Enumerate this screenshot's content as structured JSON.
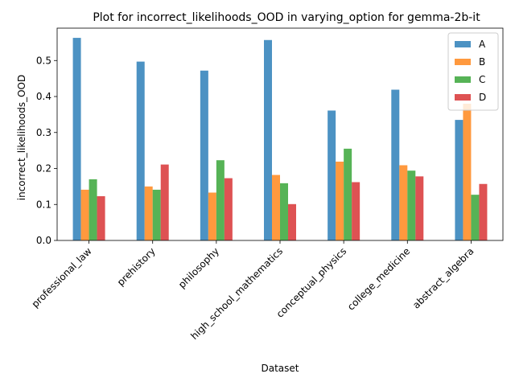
{
  "chart_data": {
    "type": "bar",
    "title": "Plot for incorrect_likelihoods_OOD in varying_option for gemma-2b-it",
    "xlabel": "Dataset",
    "ylabel": "incorrect_likelihoods_OOD",
    "ylim": [
      0,
      0.59
    ],
    "yticks": [
      "0.0",
      "0.1",
      "0.2",
      "0.3",
      "0.4",
      "0.5"
    ],
    "categories": [
      "professional_law",
      "prehistory",
      "philosophy",
      "high_school_mathematics",
      "conceptual_physics",
      "college_medicine",
      "abstract_algebra"
    ],
    "series": [
      {
        "name": "A",
        "color": "#1f77b4",
        "values": [
          0.563,
          0.497,
          0.472,
          0.557,
          0.361,
          0.419,
          0.335
        ]
      },
      {
        "name": "B",
        "color": "#ff7f0e",
        "values": [
          0.141,
          0.15,
          0.133,
          0.182,
          0.219,
          0.209,
          0.38
        ]
      },
      {
        "name": "C",
        "color": "#2ca02c",
        "values": [
          0.17,
          0.141,
          0.223,
          0.159,
          0.255,
          0.194,
          0.127
        ]
      },
      {
        "name": "D",
        "color": "#d62728",
        "values": [
          0.123,
          0.211,
          0.173,
          0.101,
          0.162,
          0.178,
          0.157
        ]
      }
    ],
    "legend_position": "top-right",
    "grid": false
  }
}
